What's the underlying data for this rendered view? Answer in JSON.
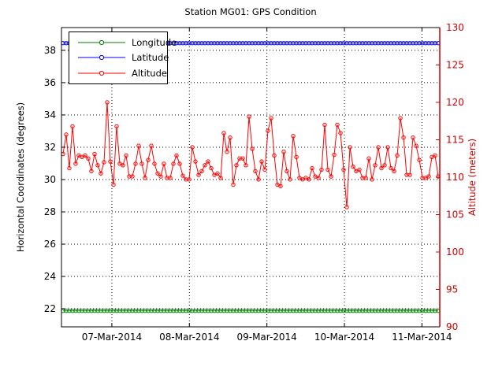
{
  "title": "Station MG01: GPS Condition",
  "background_color": "#ffffff",
  "legend": {
    "position": "top-left",
    "items": [
      {
        "label": "Longitude",
        "color": "#007f00"
      },
      {
        "label": "Latitude",
        "color": "#0000ff"
      },
      {
        "label": "Altitude",
        "color": "#ff0000"
      }
    ]
  },
  "chart_data": {
    "type": "line",
    "title": "Station MG01: GPS Condition",
    "grid": "dotted",
    "marker": "o",
    "x_axis": {
      "tick_labels": [
        "07-Mar-2014",
        "08-Mar-2014",
        "09-Mar-2014",
        "10-Mar-2014",
        "11-Mar-2014"
      ],
      "tick_days": [
        7,
        8,
        9,
        10,
        11
      ],
      "lim_days": [
        6.35,
        11.23
      ]
    },
    "left_axis": {
      "label": "Horizontal Coordinates (degrees)",
      "ticks": [
        22,
        24,
        26,
        28,
        30,
        32,
        34,
        36,
        38
      ],
      "lim": [
        20.88,
        39.41
      ],
      "color": "#000000"
    },
    "right_axis": {
      "label": "Altitude (meters)",
      "ticks": [
        90,
        95,
        100,
        105,
        110,
        115,
        120,
        125,
        130
      ],
      "lim": [
        90,
        130
      ],
      "color": "#cc0000"
    },
    "data_span_days": [
      6.37,
      11.21
    ],
    "series": [
      {
        "name": "Longitude",
        "axis": "left",
        "color": "#007f00",
        "constant_value": 21.87
      },
      {
        "name": "Latitude",
        "axis": "left",
        "color": "#0000ff",
        "constant_value": 38.45
      },
      {
        "name": "Altitude",
        "axis": "right",
        "color": "#ff0000",
        "values": [
          113.1,
          115.7,
          111.2,
          116.8,
          111.8,
          112.9,
          112.7,
          112.9,
          112.5,
          110.8,
          113.1,
          111.6,
          110.5,
          112.0,
          120.0,
          112.1,
          109.0,
          116.8,
          111.8,
          111.6,
          112.9,
          110.1,
          110.1,
          111.8,
          114.2,
          111.8,
          109.9,
          112.3,
          114.2,
          111.8,
          110.5,
          110.1,
          111.8,
          109.9,
          109.9,
          111.8,
          112.9,
          111.8,
          110.2,
          109.7,
          109.7,
          114.0,
          112.1,
          110.3,
          110.8,
          111.6,
          112.1,
          111.2,
          110.3,
          110.5,
          109.9,
          115.9,
          113.4,
          115.3,
          109.0,
          111.6,
          112.5,
          112.5,
          111.6,
          118.1,
          113.8,
          110.8,
          109.7,
          112.1,
          111.0,
          116.2,
          117.9,
          112.9,
          109.0,
          108.8,
          113.4,
          110.8,
          109.7,
          115.5,
          112.7,
          109.9,
          109.7,
          109.9,
          109.7,
          111.2,
          110.1,
          109.9,
          111.0,
          117.0,
          111.0,
          110.1,
          113.0,
          117.0,
          115.9,
          111.0,
          106.0,
          114.0,
          111.4,
          110.8,
          111.0,
          109.9,
          109.9,
          112.5,
          109.7,
          111.6,
          114.0,
          111.2,
          111.6,
          114.0,
          111.2,
          110.8,
          112.9,
          117.9,
          115.3,
          110.3,
          110.3,
          115.3,
          114.2,
          112.3,
          109.9,
          109.9,
          110.1,
          112.7,
          112.9,
          110.1
        ]
      }
    ]
  }
}
